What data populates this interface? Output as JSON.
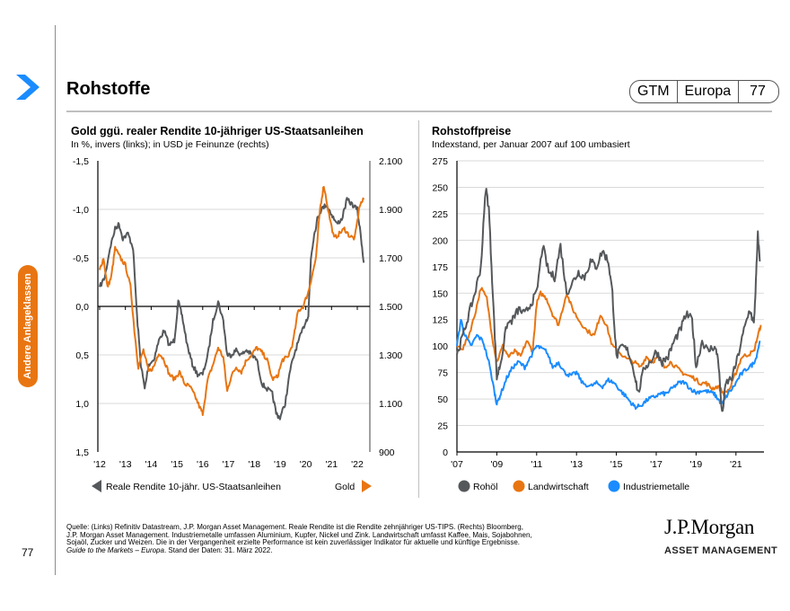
{
  "page": {
    "title": "Rohstoffe",
    "badge": [
      "GTM",
      "Europa",
      "77"
    ],
    "side_tab": "Andere Anlageklassen",
    "page_number": "77",
    "colors": {
      "accent_blue": "#1a8cff",
      "orange": "#e87511",
      "gray": "#55585b",
      "side_tab": "#e87511"
    }
  },
  "footer": {
    "source_lines": [
      "Quelle: (Links) Refinitiv Datastream, J.P. Morgan Asset Management. Reale Rendite ist die Rendite zehnjähriger US-TIPS. (Rechts) Bloomberg,",
      "J.P. Morgan Asset Management. Industriemetalle umfassen Aluminium, Kupfer, Nickel und Zink. Landwirtschaft umfasst Kaffee, Mais, Sojabohnen,",
      "Sojaöl, Zucker und Weizen. Die in der Vergangenheit erzielte Performance ist kein zuverlässiger Indikator für aktuelle und künftige Ergebnisse."
    ],
    "guide_italic": "Guide to the Markets – Europa",
    "guide_rest": ". Stand der Daten: 31. März 2022.",
    "logo_main": "J.P.Morgan",
    "logo_sub": "ASSET MANAGEMENT"
  },
  "chart_data": [
    {
      "type": "line",
      "title": "Gold ggü. realer Rendite 10-jähriger US-Staatsanleihen",
      "subtitle": "In %, invers (links); in USD je Feinunze (rechts)",
      "x_ticks": [
        "'12",
        "'13",
        "'14",
        "'15",
        "'16",
        "'17",
        "'18",
        "'19",
        "'20",
        "'21",
        "'22"
      ],
      "x_range": [
        2012.0,
        2022.4
      ],
      "y_left": {
        "ticks": [
          "-1,5",
          "-1,0",
          "-0,5",
          "0,0",
          "0,5",
          "1,0",
          "1,5"
        ],
        "range": [
          -1.5,
          1.5
        ],
        "inverted": true
      },
      "y_right": {
        "ticks": [
          "2.100",
          "1.900",
          "1.700",
          "1.500",
          "1.300",
          "1.100",
          "900"
        ],
        "range": [
          900,
          2100
        ]
      },
      "legend": [
        {
          "name": "Reale Rendite 10-jähr. US-Staatsanleihen",
          "axis": "left",
          "marker": "left-arrow"
        },
        {
          "name": "Gold",
          "axis": "right",
          "marker": "right-arrow"
        }
      ],
      "series": [
        {
          "name": "Reale Rendite 10-jähr. US-Staatsanleihen",
          "color": "#55585b",
          "axis": "left",
          "x": [
            2012.0,
            2012.2,
            2012.4,
            2012.6,
            2012.75,
            2012.9,
            2013.1,
            2013.3,
            2013.45,
            2013.6,
            2013.75,
            2013.9,
            2014.1,
            2014.3,
            2014.5,
            2014.7,
            2014.9,
            2015.05,
            2015.2,
            2015.4,
            2015.6,
            2015.8,
            2016.0,
            2016.2,
            2016.4,
            2016.6,
            2016.8,
            2016.95,
            2017.1,
            2017.3,
            2017.5,
            2017.7,
            2017.9,
            2018.1,
            2018.3,
            2018.5,
            2018.7,
            2018.85,
            2019.0,
            2019.2,
            2019.4,
            2019.6,
            2019.8,
            2020.0,
            2020.1,
            2020.2,
            2020.3,
            2020.45,
            2020.6,
            2020.8,
            2021.0,
            2021.2,
            2021.4,
            2021.6,
            2021.8,
            2022.0,
            2022.15,
            2022.25
          ],
          "y": [
            -0.2,
            -0.3,
            -0.6,
            -0.8,
            -0.85,
            -0.7,
            -0.75,
            -0.6,
            0.1,
            0.6,
            0.85,
            0.6,
            0.55,
            0.35,
            0.25,
            0.4,
            0.35,
            -0.05,
            0.1,
            0.4,
            0.6,
            0.7,
            0.7,
            0.5,
            0.15,
            -0.05,
            0.15,
            0.5,
            0.5,
            0.45,
            0.5,
            0.45,
            0.5,
            0.55,
            0.8,
            0.85,
            0.9,
            1.1,
            1.15,
            1.0,
            0.65,
            0.45,
            0.3,
            0.15,
            0.1,
            -0.5,
            -0.7,
            -0.9,
            -1.0,
            -1.05,
            -0.95,
            -0.85,
            -0.9,
            -1.1,
            -1.05,
            -1.0,
            -0.7,
            -0.45
          ]
        },
        {
          "name": "Gold",
          "color": "#e87511",
          "axis": "right",
          "x": [
            2012.0,
            2012.15,
            2012.3,
            2012.45,
            2012.6,
            2012.8,
            2013.0,
            2013.2,
            2013.35,
            2013.5,
            2013.7,
            2013.9,
            2014.1,
            2014.3,
            2014.5,
            2014.7,
            2014.9,
            2015.1,
            2015.3,
            2015.5,
            2015.7,
            2015.9,
            2016.0,
            2016.2,
            2016.4,
            2016.6,
            2016.8,
            2016.95,
            2017.1,
            2017.3,
            2017.5,
            2017.7,
            2017.9,
            2018.1,
            2018.3,
            2018.5,
            2018.7,
            2018.9,
            2019.1,
            2019.3,
            2019.5,
            2019.7,
            2019.9,
            2020.1,
            2020.25,
            2020.4,
            2020.55,
            2020.7,
            2020.9,
            2021.1,
            2021.3,
            2021.5,
            2021.7,
            2021.9,
            2022.1,
            2022.25
          ],
          "y": [
            1650,
            1700,
            1580,
            1620,
            1740,
            1700,
            1670,
            1580,
            1400,
            1250,
            1320,
            1230,
            1250,
            1310,
            1280,
            1220,
            1200,
            1230,
            1180,
            1170,
            1130,
            1080,
            1060,
            1200,
            1260,
            1330,
            1290,
            1150,
            1210,
            1250,
            1230,
            1280,
            1300,
            1330,
            1310,
            1280,
            1200,
            1210,
            1280,
            1290,
            1350,
            1480,
            1500,
            1560,
            1630,
            1700,
            1900,
            2000,
            1880,
            1780,
            1800,
            1820,
            1790,
            1780,
            1920,
            1940
          ]
        }
      ]
    },
    {
      "type": "line",
      "title": "Rohstoffpreise",
      "subtitle": "Indexstand, per Januar 2007 auf 100 umbasiert",
      "x_ticks": [
        "'07",
        "'09",
        "'11",
        "'13",
        "'15",
        "'17",
        "'19",
        "'21"
      ],
      "x_range": [
        2007.0,
        2022.3
      ],
      "y_ticks": [
        "0",
        "25",
        "50",
        "75",
        "100",
        "125",
        "150",
        "175",
        "200",
        "225",
        "250",
        "275"
      ],
      "ylim": [
        0,
        275
      ],
      "legend": [
        "Rohöl",
        "Landwirtschaft",
        "Industriemetalle"
      ],
      "series": [
        {
          "name": "Rohöl",
          "color": "#55585b",
          "x": [
            2007.0,
            2007.3,
            2007.6,
            2007.9,
            2008.2,
            2008.45,
            2008.6,
            2008.8,
            2009.0,
            2009.2,
            2009.5,
            2009.8,
            2010.1,
            2010.4,
            2010.7,
            2011.0,
            2011.3,
            2011.6,
            2011.9,
            2012.2,
            2012.5,
            2012.8,
            2013.1,
            2013.4,
            2013.7,
            2014.0,
            2014.3,
            2014.6,
            2014.8,
            2015.0,
            2015.3,
            2015.6,
            2015.9,
            2016.1,
            2016.4,
            2016.7,
            2017.0,
            2017.3,
            2017.6,
            2017.9,
            2018.2,
            2018.5,
            2018.8,
            2019.0,
            2019.3,
            2019.6,
            2019.9,
            2020.1,
            2020.3,
            2020.5,
            2020.8,
            2021.1,
            2021.4,
            2021.7,
            2021.9,
            2022.0,
            2022.1,
            2022.2
          ],
          "y": [
            92,
            110,
            130,
            150,
            175,
            250,
            230,
            150,
            70,
            85,
            120,
            125,
            135,
            130,
            140,
            150,
            195,
            170,
            165,
            195,
            150,
            160,
            170,
            165,
            180,
            175,
            190,
            180,
            150,
            90,
            100,
            95,
            75,
            55,
            80,
            85,
            95,
            85,
            90,
            105,
            115,
            130,
            125,
            80,
            105,
            95,
            100,
            90,
            35,
            65,
            70,
            90,
            115,
            135,
            120,
            160,
            205,
            180
          ]
        },
        {
          "name": "Landwirtschaft",
          "color": "#e87511",
          "x": [
            2007.0,
            2007.3,
            2007.6,
            2007.9,
            2008.2,
            2008.5,
            2008.8,
            2009.0,
            2009.3,
            2009.6,
            2009.9,
            2010.2,
            2010.5,
            2010.8,
            2011.0,
            2011.2,
            2011.5,
            2011.8,
            2012.1,
            2012.5,
            2012.8,
            2013.1,
            2013.5,
            2013.9,
            2014.2,
            2014.5,
            2014.8,
            2015.1,
            2015.5,
            2015.9,
            2016.2,
            2016.5,
            2016.8,
            2017.1,
            2017.4,
            2017.7,
            2018.0,
            2018.3,
            2018.6,
            2018.9,
            2019.2,
            2019.5,
            2019.8,
            2020.1,
            2020.4,
            2020.7,
            2021.0,
            2021.3,
            2021.6,
            2021.9,
            2022.1,
            2022.25
          ],
          "y": [
            100,
            98,
            110,
            130,
            155,
            145,
            105,
            85,
            100,
            90,
            95,
            90,
            105,
            95,
            140,
            150,
            145,
            130,
            120,
            150,
            135,
            125,
            115,
            110,
            130,
            120,
            100,
            95,
            88,
            85,
            80,
            90,
            85,
            90,
            80,
            85,
            80,
            75,
            72,
            70,
            65,
            65,
            60,
            62,
            55,
            60,
            75,
            90,
            92,
            95,
            110,
            120
          ]
        },
        {
          "name": "Industriemetalle",
          "color": "#1a8cff",
          "x": [
            2007.0,
            2007.2,
            2007.4,
            2007.7,
            2008.0,
            2008.3,
            2008.6,
            2008.9,
            2009.0,
            2009.2,
            2009.5,
            2009.8,
            2010.1,
            2010.4,
            2010.7,
            2011.0,
            2011.2,
            2011.5,
            2011.8,
            2012.1,
            2012.4,
            2012.7,
            2013.0,
            2013.3,
            2013.7,
            2014.0,
            2014.3,
            2014.6,
            2014.9,
            2015.2,
            2015.5,
            2015.8,
            2016.0,
            2016.3,
            2016.6,
            2016.9,
            2017.2,
            2017.5,
            2017.8,
            2018.1,
            2018.4,
            2018.7,
            2019.0,
            2019.3,
            2019.6,
            2019.9,
            2020.1,
            2020.3,
            2020.6,
            2020.9,
            2021.2,
            2021.5,
            2021.8,
            2022.0,
            2022.2
          ],
          "y": [
            100,
            125,
            110,
            100,
            110,
            105,
            85,
            55,
            45,
            55,
            70,
            80,
            85,
            80,
            90,
            100,
            98,
            95,
            80,
            85,
            75,
            72,
            75,
            65,
            62,
            65,
            62,
            68,
            65,
            58,
            52,
            45,
            42,
            45,
            50,
            52,
            55,
            55,
            60,
            65,
            66,
            60,
            56,
            58,
            57,
            55,
            50,
            45,
            55,
            62,
            72,
            78,
            82,
            88,
            105
          ]
        }
      ]
    }
  ]
}
